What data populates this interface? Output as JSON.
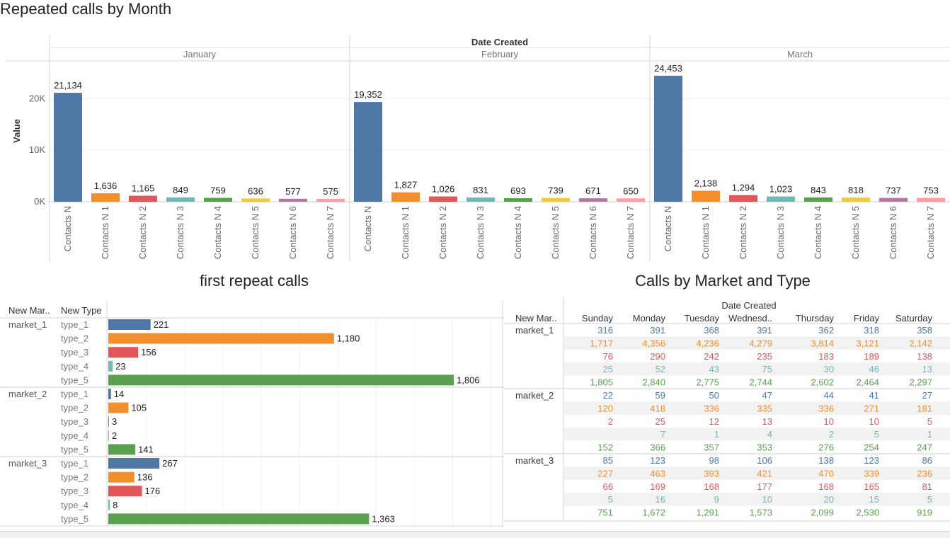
{
  "dashboard": {
    "title": "Repeated calls by Month",
    "bar_section_title": "first repeat calls",
    "table_section_title": "Calls by Market and Type"
  },
  "colors": {
    "blue": "#4e79a7",
    "orange": "#f28e2b",
    "red": "#e15759",
    "teal": "#76b7b2",
    "green": "#59a14f",
    "yellow": "#edc948",
    "purple": "#b07aa1",
    "pink": "#ff9da7"
  },
  "chart_data": [
    {
      "type": "bar",
      "title": "Repeated calls by Month",
      "column_header": "Date Created",
      "ylabel": "Value",
      "ylim": [
        0,
        25000
      ],
      "yticks": [
        0,
        10000,
        20000
      ],
      "ytick_labels": [
        "0K",
        "10K",
        "20K"
      ],
      "panels": [
        "January",
        "February",
        "March"
      ],
      "categories": [
        "Contacts N",
        "Contacts N 1",
        "Contacts N 2",
        "Contacts N 3",
        "Contacts N 4",
        "Contacts N 5",
        "Contacts N 6",
        "Contacts N 7"
      ],
      "values": [
        [
          21134,
          1636,
          1165,
          849,
          759,
          636,
          577,
          575
        ],
        [
          19352,
          1827,
          1026,
          831,
          693,
          739,
          671,
          650
        ],
        [
          24453,
          2138,
          1294,
          1023,
          843,
          818,
          737,
          753
        ]
      ],
      "value_labels": [
        [
          "21,134",
          "1,636",
          "1,165",
          "849",
          "759",
          "636",
          "577",
          "575"
        ],
        [
          "19,352",
          "1,827",
          "1,026",
          "831",
          "693",
          "739",
          "671",
          "650"
        ],
        [
          "24,453",
          "2,138",
          "1,294",
          "1,023",
          "843",
          "818",
          "737",
          "753"
        ]
      ],
      "bar_colors": [
        "#4e79a7",
        "#f28e2b",
        "#e15759",
        "#76b7b2",
        "#59a14f",
        "#edc948",
        "#b07aa1",
        "#ff9da7"
      ],
      "grid": true
    },
    {
      "type": "bar",
      "orientation": "horizontal",
      "title": "first repeat calls",
      "row_headers": [
        "New Mar..",
        "New Type"
      ],
      "xlim": [
        0,
        2000
      ],
      "groups": [
        {
          "market": "market_1",
          "types": [
            "type_1",
            "type_2",
            "type_3",
            "type_4",
            "type_5"
          ],
          "values": [
            221,
            1180,
            156,
            23,
            1806
          ],
          "value_labels": [
            "221",
            "1,180",
            "156",
            "23",
            "1,806"
          ]
        },
        {
          "market": "market_2",
          "types": [
            "type_1",
            "type_2",
            "type_3",
            "type_4",
            "type_5"
          ],
          "values": [
            14,
            105,
            3,
            2,
            141
          ],
          "value_labels": [
            "14",
            "105",
            "3",
            "2",
            "141"
          ]
        },
        {
          "market": "market_3",
          "types": [
            "type_1",
            "type_2",
            "type_3",
            "type_4",
            "type_5"
          ],
          "values": [
            267,
            136,
            176,
            8,
            1363
          ],
          "value_labels": [
            "267",
            "136",
            "176",
            "8",
            "1,363"
          ]
        }
      ],
      "type_colors": [
        "#4e79a7",
        "#f28e2b",
        "#e15759",
        "#76b7b2",
        "#59a14f"
      ],
      "grid": true
    },
    {
      "type": "table",
      "title": "Calls by Market and Type",
      "column_header": "Date Created",
      "row_header": "New Mar..",
      "columns": [
        "Sunday",
        "Monday",
        "Tuesday",
        "Wednesd..",
        "Thursday",
        "Friday",
        "Saturday"
      ],
      "groups": [
        {
          "market": "market_1",
          "rows": [
            [
              "316",
              "391",
              "368",
              "391",
              "362",
              "318",
              "358"
            ],
            [
              "1,717",
              "4,356",
              "4,236",
              "4,279",
              "3,814",
              "3,121",
              "2,142"
            ],
            [
              "76",
              "290",
              "242",
              "235",
              "183",
              "189",
              "138"
            ],
            [
              "25",
              "52",
              "43",
              "75",
              "30",
              "46",
              "13"
            ],
            [
              "1,805",
              "2,840",
              "2,775",
              "2,744",
              "2,602",
              "2,464",
              "2,297"
            ]
          ]
        },
        {
          "market": "market_2",
          "rows": [
            [
              "22",
              "59",
              "50",
              "47",
              "44",
              "41",
              "27"
            ],
            [
              "120",
              "418",
              "336",
              "335",
              "336",
              "271",
              "181"
            ],
            [
              "2",
              "25",
              "12",
              "13",
              "10",
              "10",
              "5"
            ],
            [
              "",
              "7",
              "1",
              "4",
              "2",
              "5",
              "1"
            ],
            [
              "152",
              "366",
              "357",
              "353",
              "276",
              "254",
              "247"
            ]
          ]
        },
        {
          "market": "market_3",
          "rows": [
            [
              "85",
              "123",
              "98",
              "106",
              "138",
              "123",
              "86"
            ],
            [
              "227",
              "463",
              "393",
              "421",
              "470",
              "339",
              "236"
            ],
            [
              "66",
              "169",
              "168",
              "177",
              "168",
              "165",
              "81"
            ],
            [
              "5",
              "16",
              "9",
              "10",
              "20",
              "15",
              "5"
            ],
            [
              "751",
              "1,672",
              "1,291",
              "1,573",
              "2,099",
              "2,530",
              "919"
            ]
          ]
        }
      ],
      "row_colors": [
        "#4e79a7",
        "#f28e2b",
        "#e15759",
        "#76b7b2",
        "#59a14f"
      ]
    }
  ]
}
